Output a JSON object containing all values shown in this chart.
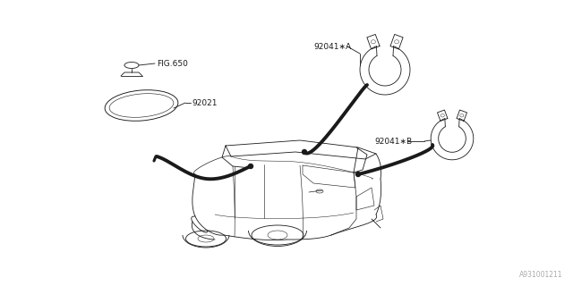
{
  "background_color": "#ffffff",
  "fig_width": 6.4,
  "fig_height": 3.2,
  "dpi": 100,
  "diagram_code": "A931001211",
  "labels": {
    "fig650": "FIG.650",
    "part92021": "92021",
    "part92041A": "92041∗A",
    "part92041B": "92041∗B"
  },
  "line_color": "#1a1a1a",
  "thin_lw": 0.6,
  "thick_lw": 2.8,
  "font_size": 6.5,
  "font_size_code": 5.5,
  "font_color_code": "#aaaaaa"
}
